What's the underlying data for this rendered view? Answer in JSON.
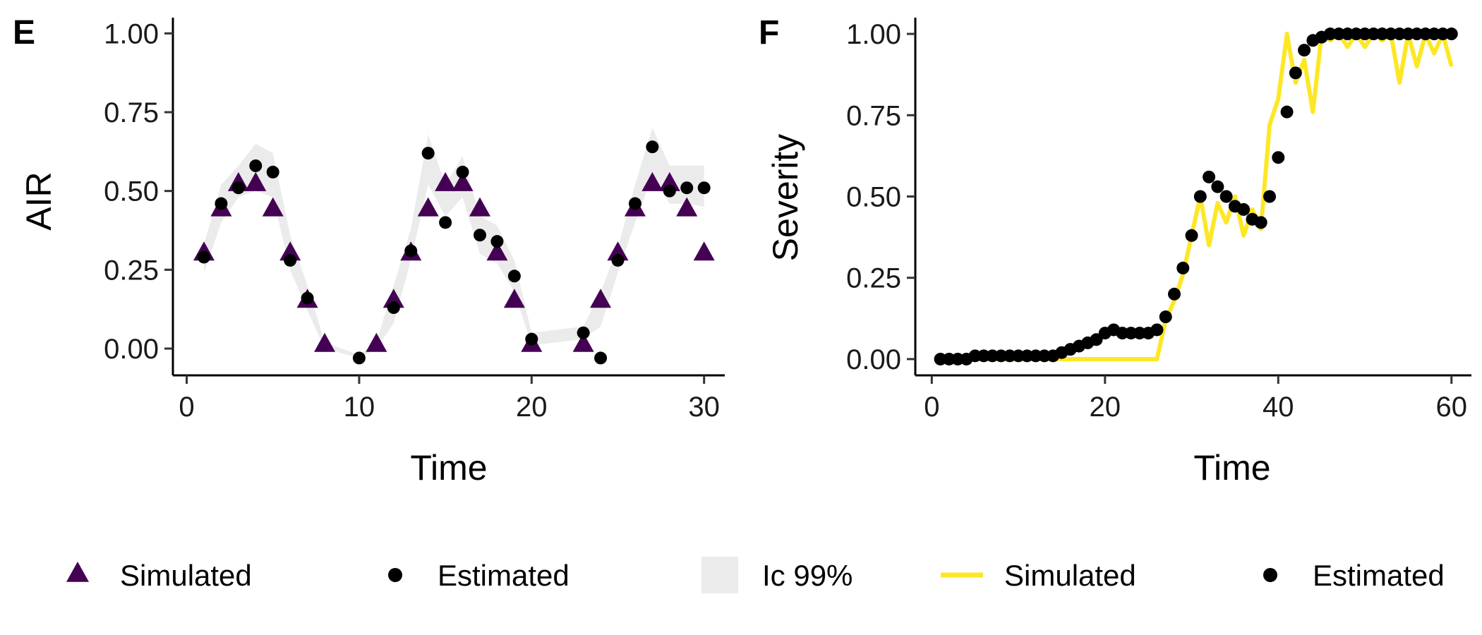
{
  "chart_data": [
    {
      "panel_tag": "E",
      "type": "scatter",
      "xlabel": "Time",
      "ylabel": "AIR",
      "xlim": [
        -0.8,
        31.2
      ],
      "ylim": [
        -0.085,
        1.05
      ],
      "x_ticks": [
        0,
        10,
        20,
        30
      ],
      "y_ticks": [
        0.0,
        0.25,
        0.5,
        0.75,
        1.0
      ],
      "y_tick_labels": [
        "0.00",
        "0.25",
        "0.50",
        "0.75",
        "1.00"
      ],
      "grid": false,
      "band": {
        "name": "Ic 99%",
        "x": [
          1,
          2,
          3,
          4,
          5,
          6,
          7,
          8,
          10,
          11,
          12,
          13,
          14,
          15,
          16,
          17,
          18,
          19,
          20,
          23,
          24,
          25,
          26,
          27,
          28,
          29,
          30
        ],
        "lower": [
          0.24,
          0.4,
          0.48,
          0.5,
          0.48,
          0.25,
          0.12,
          0.0,
          -0.03,
          0.0,
          0.08,
          0.28,
          0.52,
          0.42,
          0.48,
          0.3,
          0.27,
          0.18,
          0.01,
          0.03,
          0.07,
          0.24,
          0.4,
          0.55,
          0.46,
          0.46,
          0.45
        ],
        "upper": [
          0.33,
          0.52,
          0.58,
          0.65,
          0.62,
          0.36,
          0.2,
          0.02,
          -0.02,
          0.02,
          0.2,
          0.38,
          0.68,
          0.52,
          0.61,
          0.42,
          0.39,
          0.28,
          0.05,
          0.07,
          0.18,
          0.32,
          0.52,
          0.7,
          0.58,
          0.58,
          0.58
        ]
      },
      "series": [
        {
          "name": "Simulated",
          "marker": "triangle",
          "color": "#440154",
          "x": [
            1,
            2,
            3,
            4,
            5,
            6,
            7,
            8,
            11,
            12,
            13,
            14,
            15,
            16,
            17,
            18,
            19,
            20,
            23,
            24,
            25,
            26,
            27,
            28,
            29,
            30
          ],
          "y": [
            0.3,
            0.44,
            0.52,
            0.52,
            0.44,
            0.3,
            0.15,
            0.01,
            0.01,
            0.15,
            0.3,
            0.44,
            0.52,
            0.52,
            0.44,
            0.3,
            0.15,
            0.01,
            0.01,
            0.15,
            0.3,
            0.44,
            0.52,
            0.52,
            0.44,
            0.3
          ]
        },
        {
          "name": "Estimated",
          "marker": "circle",
          "color": "#000000",
          "x": [
            1,
            2,
            3,
            4,
            5,
            6,
            7,
            10,
            12,
            13,
            14,
            15,
            16,
            17,
            18,
            19,
            20,
            23,
            24,
            25,
            26,
            27,
            28,
            29,
            30
          ],
          "y": [
            0.29,
            0.46,
            0.51,
            0.58,
            0.56,
            0.28,
            0.16,
            -0.03,
            0.13,
            0.31,
            0.62,
            0.4,
            0.56,
            0.36,
            0.34,
            0.23,
            0.03,
            0.05,
            -0.03,
            0.28,
            0.46,
            0.64,
            0.5,
            0.51,
            0.51
          ]
        }
      ]
    },
    {
      "panel_tag": "F",
      "type": "line",
      "xlabel": "Time",
      "ylabel": "Severity",
      "xlim": [
        -1.9,
        62.3
      ],
      "ylim": [
        -0.05,
        1.05
      ],
      "x_ticks": [
        0,
        20,
        40,
        60
      ],
      "y_ticks": [
        0.0,
        0.25,
        0.5,
        0.75,
        1.0
      ],
      "y_tick_labels": [
        "0.00",
        "0.25",
        "0.50",
        "0.75",
        "1.00"
      ],
      "grid": false,
      "series": [
        {
          "name": "Simulated",
          "marker": "line",
          "color": "#FDE725",
          "x": [
            1,
            2,
            3,
            4,
            5,
            6,
            7,
            8,
            9,
            10,
            11,
            12,
            13,
            14,
            15,
            16,
            17,
            18,
            19,
            20,
            21,
            22,
            23,
            24,
            25,
            26,
            27,
            28,
            29,
            30,
            31,
            32,
            33,
            34,
            35,
            36,
            37,
            38,
            39,
            40,
            41,
            42,
            43,
            44,
            45,
            46,
            47,
            48,
            49,
            50,
            51,
            52,
            53,
            54,
            55,
            56,
            57,
            58,
            59,
            60
          ],
          "y": [
            0.0,
            0.0,
            0.0,
            0.0,
            0.0,
            0.0,
            0.0,
            0.0,
            0.0,
            0.0,
            0.0,
            0.0,
            0.0,
            0.0,
            0.0,
            0.0,
            0.0,
            0.0,
            0.0,
            0.0,
            0.0,
            0.0,
            0.0,
            0.0,
            0.0,
            0.0,
            0.12,
            0.18,
            0.26,
            0.38,
            0.5,
            0.35,
            0.48,
            0.42,
            0.5,
            0.38,
            0.46,
            0.4,
            0.72,
            0.8,
            1.0,
            0.85,
            0.92,
            0.76,
            1.0,
            0.98,
            1.0,
            0.96,
            1.0,
            0.96,
            1.0,
            0.98,
            1.0,
            0.85,
            1.0,
            0.9,
            1.0,
            0.94,
            1.0,
            0.9
          ]
        },
        {
          "name": "Estimated",
          "marker": "circle",
          "color": "#000000",
          "x": [
            1,
            2,
            3,
            4,
            5,
            6,
            7,
            8,
            9,
            10,
            11,
            12,
            13,
            14,
            15,
            16,
            17,
            18,
            19,
            20,
            21,
            22,
            23,
            24,
            25,
            26,
            27,
            28,
            29,
            30,
            31,
            32,
            33,
            34,
            35,
            36,
            37,
            38,
            39,
            40,
            41,
            42,
            43,
            44,
            45,
            46,
            47,
            48,
            49,
            50,
            51,
            52,
            53,
            54,
            55,
            56,
            57,
            58,
            59,
            60
          ],
          "y": [
            0.0,
            0.0,
            0.0,
            0.0,
            0.01,
            0.01,
            0.01,
            0.01,
            0.01,
            0.01,
            0.01,
            0.01,
            0.01,
            0.01,
            0.02,
            0.03,
            0.04,
            0.05,
            0.06,
            0.08,
            0.09,
            0.08,
            0.08,
            0.08,
            0.08,
            0.09,
            0.13,
            0.2,
            0.28,
            0.38,
            0.5,
            0.56,
            0.53,
            0.5,
            0.47,
            0.46,
            0.43,
            0.42,
            0.5,
            0.62,
            0.76,
            0.88,
            0.95,
            0.98,
            0.99,
            1.0,
            1.0,
            1.0,
            1.0,
            1.0,
            1.0,
            1.0,
            1.0,
            1.0,
            1.0,
            1.0,
            1.0,
            1.0,
            1.0,
            1.0
          ]
        }
      ]
    }
  ],
  "legend": {
    "position": "bottom",
    "items": [
      {
        "label": "Simulated",
        "symbol": "triangle",
        "color": "#440154"
      },
      {
        "label": "Estimated",
        "symbol": "circle",
        "color": "#000000"
      },
      {
        "label": "Ic 99%",
        "symbol": "band",
        "color": "#EBEBEB"
      },
      {
        "label": "Simulated",
        "symbol": "line",
        "color": "#FDE725"
      },
      {
        "label": "Estimated",
        "symbol": "circle",
        "color": "#000000"
      }
    ]
  }
}
